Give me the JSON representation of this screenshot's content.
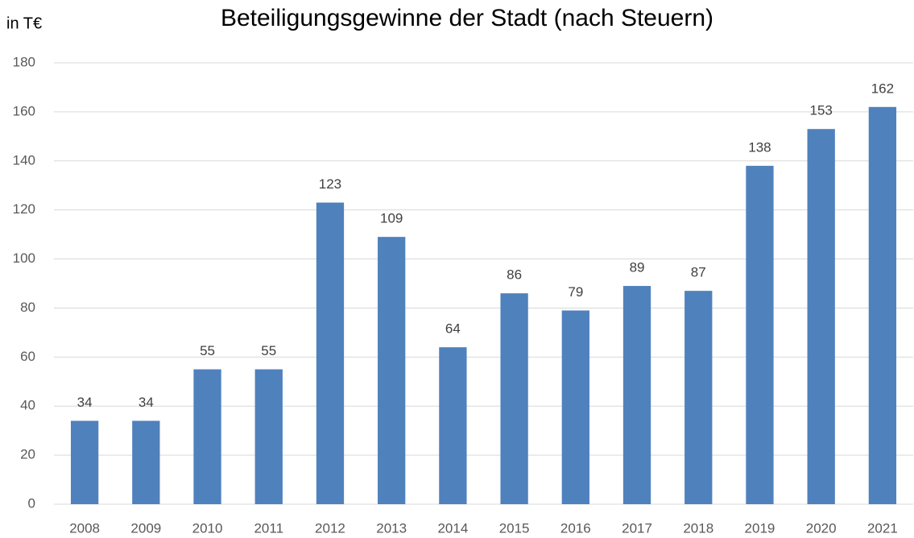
{
  "chart_data": {
    "type": "bar",
    "title": "Beteiligungsgewinne der Stadt (nach Steuern)",
    "y_label": "in T€",
    "categories": [
      "2008",
      "2009",
      "2010",
      "2011",
      "2012",
      "2013",
      "2014",
      "2015",
      "2016",
      "2017",
      "2018",
      "2019",
      "2020",
      "2021"
    ],
    "values": [
      34,
      34,
      55,
      55,
      123,
      109,
      64,
      86,
      79,
      89,
      87,
      138,
      153,
      162
    ],
    "color": "#4f81bd",
    "ylim": [
      0,
      180
    ],
    "yticks": [
      0,
      20,
      40,
      60,
      80,
      100,
      120,
      140,
      160,
      180
    ],
    "grid": true
  }
}
